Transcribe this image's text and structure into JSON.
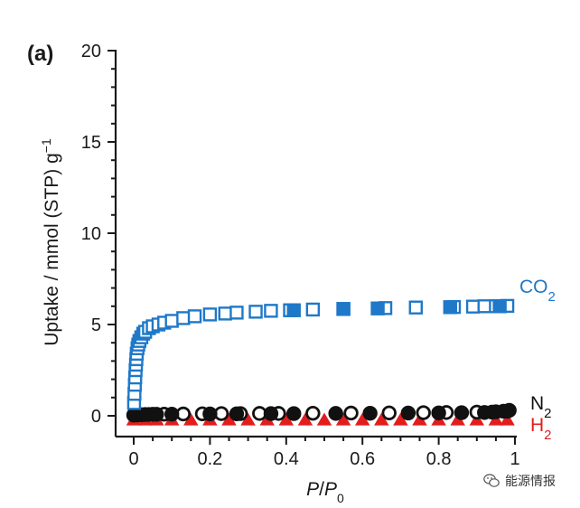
{
  "chart_data": {
    "type": "scatter",
    "panel_label": "(a)",
    "xlabel_parts": [
      "P",
      "/",
      "P",
      "0"
    ],
    "ylabel": "Uptake / mmol (STP) g",
    "ylabel_sup": "−1",
    "xlim": [
      0,
      1
    ],
    "ylim": [
      0,
      20
    ],
    "x_ticks": [
      0,
      0.2,
      0.4,
      0.6,
      0.8,
      1
    ],
    "x_tick_labels": [
      "0",
      "0.2",
      "0.4",
      "0.6",
      "0.8",
      "1"
    ],
    "y_ticks": [
      0,
      5,
      10,
      15,
      20
    ],
    "y_tick_labels": [
      "0",
      "5",
      "10",
      "15",
      "20"
    ],
    "series": [
      {
        "name": "CO2",
        "label_main": "CO",
        "label_sub": "2",
        "color": "#1f78c8",
        "marker": "square",
        "adsorption": {
          "x": [
            0.001,
            0.002,
            0.003,
            0.004,
            0.005,
            0.006,
            0.007,
            0.008,
            0.01,
            0.012,
            0.015,
            0.02,
            0.025,
            0.03,
            0.04,
            0.05,
            0.065,
            0.08,
            0.1,
            0.13,
            0.16,
            0.2,
            0.24,
            0.27,
            0.32,
            0.36,
            0.41,
            0.47,
            0.55,
            0.66,
            0.74,
            0.84,
            0.89,
            0.92,
            0.95,
            0.98
          ],
          "y": [
            0.7,
            1.2,
            1.7,
            2.1,
            2.5,
            2.8,
            3.1,
            3.4,
            3.7,
            3.9,
            4.1,
            4.3,
            4.5,
            4.6,
            4.8,
            4.9,
            5.0,
            5.1,
            5.2,
            5.35,
            5.45,
            5.55,
            5.6,
            5.65,
            5.7,
            5.75,
            5.78,
            5.82,
            5.85,
            5.9,
            5.93,
            5.96,
            5.98,
            6.0,
            6.0,
            6.02
          ]
        },
        "desorption": {
          "x": [
            0.42,
            0.55,
            0.64,
            0.83,
            0.96
          ],
          "y": [
            5.78,
            5.85,
            5.88,
            5.95,
            6.0
          ]
        }
      },
      {
        "name": "N2",
        "label_main": "N",
        "label_sub": "2",
        "color": "#111111",
        "marker": "circle",
        "adsorption": {
          "x": [
            0.01,
            0.03,
            0.05,
            0.08,
            0.13,
            0.18,
            0.23,
            0.28,
            0.33,
            0.38,
            0.47,
            0.57,
            0.67,
            0.76,
            0.82,
            0.9,
            0.95,
            0.98
          ],
          "y": [
            0.05,
            0.07,
            0.08,
            0.09,
            0.1,
            0.11,
            0.12,
            0.12,
            0.13,
            0.13,
            0.14,
            0.15,
            0.16,
            0.17,
            0.18,
            0.2,
            0.22,
            0.25
          ]
        },
        "desorption": {
          "x": [
            0.0,
            0.02,
            0.04,
            0.06,
            0.1,
            0.2,
            0.27,
            0.36,
            0.42,
            0.53,
            0.62,
            0.72,
            0.8,
            0.86,
            0.92,
            0.94,
            0.97,
            0.985
          ],
          "y": [
            0.04,
            0.06,
            0.07,
            0.08,
            0.09,
            0.1,
            0.11,
            0.12,
            0.12,
            0.13,
            0.14,
            0.15,
            0.16,
            0.17,
            0.18,
            0.2,
            0.25,
            0.3
          ]
        }
      },
      {
        "name": "H2",
        "label_main": "H",
        "label_sub": "2",
        "color": "#e21d1d",
        "marker": "triangle",
        "adsorption": {
          "x": [
            0.0,
            0.03,
            0.06,
            0.1,
            0.15,
            0.2,
            0.25,
            0.3,
            0.35,
            0.4,
            0.45,
            0.5,
            0.55,
            0.6,
            0.65,
            0.7,
            0.75,
            0.8,
            0.85,
            0.9,
            0.95,
            0.98
          ],
          "y": [
            -0.25,
            -0.25,
            -0.25,
            -0.25,
            -0.25,
            -0.25,
            -0.25,
            -0.25,
            -0.25,
            -0.25,
            -0.25,
            -0.25,
            -0.25,
            -0.25,
            -0.25,
            -0.25,
            -0.25,
            -0.25,
            -0.25,
            -0.25,
            -0.25,
            -0.25
          ]
        },
        "desorption": {
          "x": [],
          "y": []
        }
      }
    ]
  },
  "watermark": {
    "text": "能源情报",
    "icon": "wechat-icon"
  }
}
